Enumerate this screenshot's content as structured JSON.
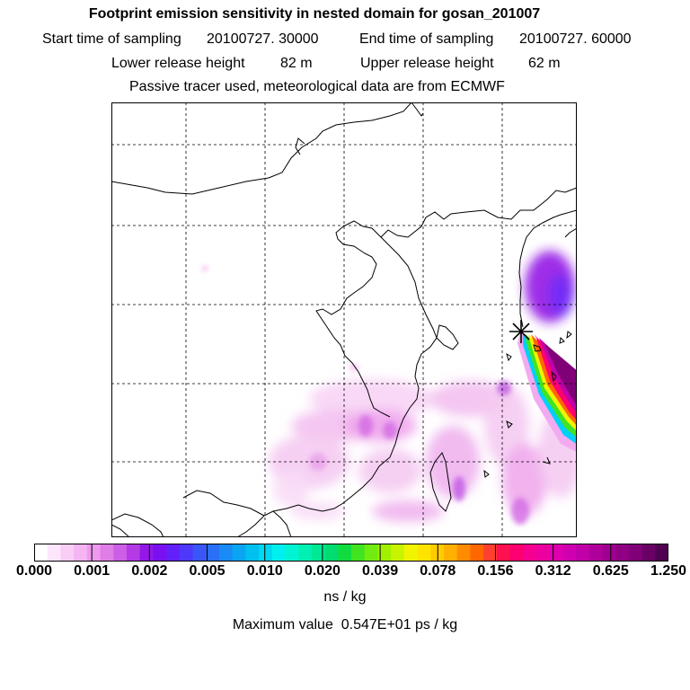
{
  "title": "Footprint emission sensitivity in nested domain for gosan_201007",
  "sampling": {
    "start_label": "Start time of sampling",
    "start_value": "20100727. 30000",
    "end_label": "End time of sampling",
    "end_value": "20100727. 60000"
  },
  "release": {
    "lower_label": "Lower release height",
    "lower_value": "82 m",
    "upper_label": "Upper release height",
    "upper_value": "62 m"
  },
  "subtitle": "Passive tracer used, meteorological data are from ECMWF",
  "legend": {
    "tick_labels": [
      "0.000",
      "0.001",
      "0.002",
      "0.005",
      "0.010",
      "0.020",
      "0.039",
      "0.078",
      "0.156",
      "0.312",
      "0.625",
      "1.250"
    ],
    "colors": [
      "#ffffff",
      "#fde6fb",
      "#f9cdf6",
      "#f5b4f2",
      "#ee99ee",
      "#e07ee8",
      "#cc5fe6",
      "#b33ae4",
      "#9318e6",
      "#7a10f0",
      "#6420f8",
      "#4e38fc",
      "#3a55f8",
      "#2a6ff6",
      "#1a8af4",
      "#0aa5f2",
      "#00c0f0",
      "#00d8f0",
      "#00f0f0",
      "#00f4d4",
      "#00f0b4",
      "#00e894",
      "#00dc70",
      "#10dc40",
      "#40e420",
      "#70ec10",
      "#a0f000",
      "#c8f400",
      "#f0f400",
      "#ffe400",
      "#ffcc00",
      "#ffb000",
      "#ff8c00",
      "#ff6800",
      "#ff4030",
      "#ff1050",
      "#ff0070",
      "#f60090",
      "#ec00a0",
      "#de00ae",
      "#d000b0",
      "#c000a8",
      "#b0009c",
      "#a00090",
      "#900084",
      "#800078",
      "#6a0066",
      "#500050"
    ]
  },
  "units": "ns / kg",
  "maximum": {
    "label": "Maximum value",
    "value": "0.547E+01 ps / kg"
  },
  "receptor_marker": "star-icon"
}
